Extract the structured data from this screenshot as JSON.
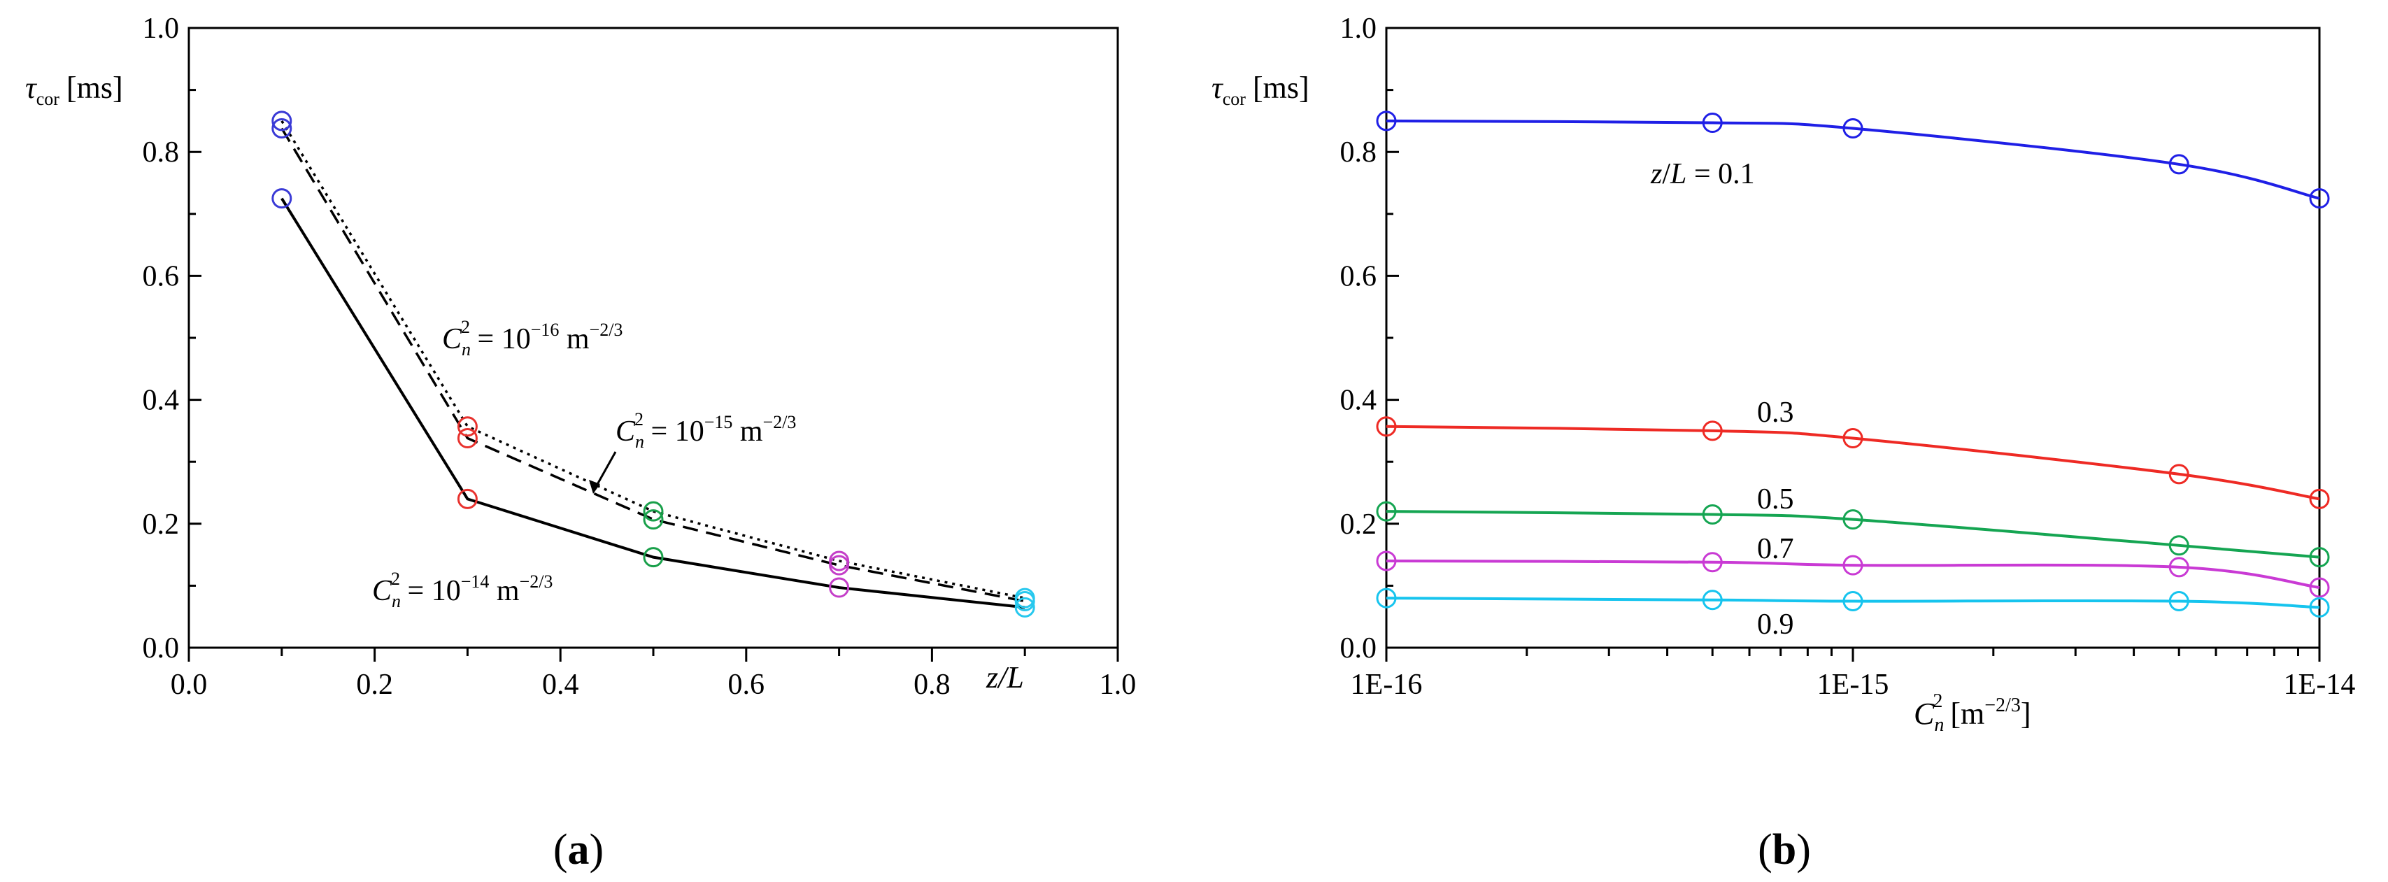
{
  "panel_labels": {
    "a": "(a)",
    "b": "(b)"
  },
  "chart_data": [
    {
      "type": "line",
      "panel": "a",
      "ylabel": {
        "symbol": "τ",
        "sub": "cor",
        "unit": "[ms]"
      },
      "xlabel": {
        "text": "z/L"
      },
      "xlim": [
        0.0,
        1.0
      ],
      "ylim": [
        0.0,
        1.0
      ],
      "xticks": [
        "0.0",
        "0.2",
        "0.4",
        "0.6",
        "0.8",
        "1.0"
      ],
      "yticks": [
        "0.0",
        "0.2",
        "0.4",
        "0.6",
        "0.8",
        "1.0"
      ],
      "x": [
        0.1,
        0.3,
        0.5,
        0.7,
        0.9
      ],
      "marker_colors": [
        "#3a3ad6",
        "#e8322e",
        "#19a04a",
        "#c43ec8",
        "#27c8ee"
      ],
      "series": [
        {
          "name": "C_n^2 = 10^-16 m^-2/3",
          "style": "dotted",
          "values": [
            0.85,
            0.357,
            0.22,
            0.14,
            0.08
          ],
          "label": {
            "base": "C",
            "sub": "n",
            "sup": "2",
            "eq": " = 10",
            "exp": "−16",
            "unit": " m",
            "unitexp": "−2/3"
          }
        },
        {
          "name": "C_n^2 = 10^-15 m^-2/3",
          "style": "dashed",
          "values": [
            0.838,
            0.338,
            0.207,
            0.133,
            0.075
          ],
          "label": {
            "base": "C",
            "sub": "n",
            "sup": "2",
            "eq": " = 10",
            "exp": "−15",
            "unit": " m",
            "unitexp": "−2/3"
          }
        },
        {
          "name": "C_n^2 = 10^-14 m^-2/3",
          "style": "solid",
          "values": [
            0.725,
            0.24,
            0.146,
            0.097,
            0.065
          ],
          "label": {
            "base": "C",
            "sub": "n",
            "sup": "2",
            "eq": " = 10",
            "exp": "−14",
            "unit": " m",
            "unitexp": "−2/3"
          }
        }
      ]
    },
    {
      "type": "line",
      "panel": "b",
      "ylabel": {
        "symbol": "τ",
        "sub": "cor",
        "unit": "[ms]"
      },
      "xlabel": {
        "base": "C",
        "sub": "n",
        "sup": "2",
        "unit": " [m",
        "unitexp": "−2/3",
        "close": "]"
      },
      "xscale": "log",
      "xlim": [
        1e-16,
        1e-14
      ],
      "ylim": [
        0.0,
        1.0
      ],
      "xticks": [
        "1E-16",
        "1E-15",
        "1E-14"
      ],
      "yticks": [
        "0.0",
        "0.2",
        "0.4",
        "0.6",
        "0.8",
        "1.0"
      ],
      "x": [
        1e-16,
        5e-16,
        1e-15,
        5e-15,
        1e-14
      ],
      "series": [
        {
          "name": "z/L = 0.1",
          "label": "z/L = 0.1",
          "color": "#1f1fe6",
          "values": [
            0.85,
            0.847,
            0.838,
            0.78,
            0.725
          ]
        },
        {
          "name": "0.3",
          "label": "0.3",
          "color": "#ee2a24",
          "values": [
            0.357,
            0.35,
            0.338,
            0.28,
            0.24
          ]
        },
        {
          "name": "0.5",
          "label": "0.5",
          "color": "#15a552",
          "values": [
            0.22,
            0.215,
            0.207,
            0.165,
            0.146
          ]
        },
        {
          "name": "0.7",
          "label": "0.7",
          "color": "#c93ad4",
          "values": [
            0.14,
            0.138,
            0.133,
            0.13,
            0.097
          ]
        },
        {
          "name": "0.9",
          "label": "0.9",
          "color": "#16c4ee",
          "values": [
            0.08,
            0.077,
            0.075,
            0.075,
            0.065
          ]
        }
      ]
    }
  ]
}
